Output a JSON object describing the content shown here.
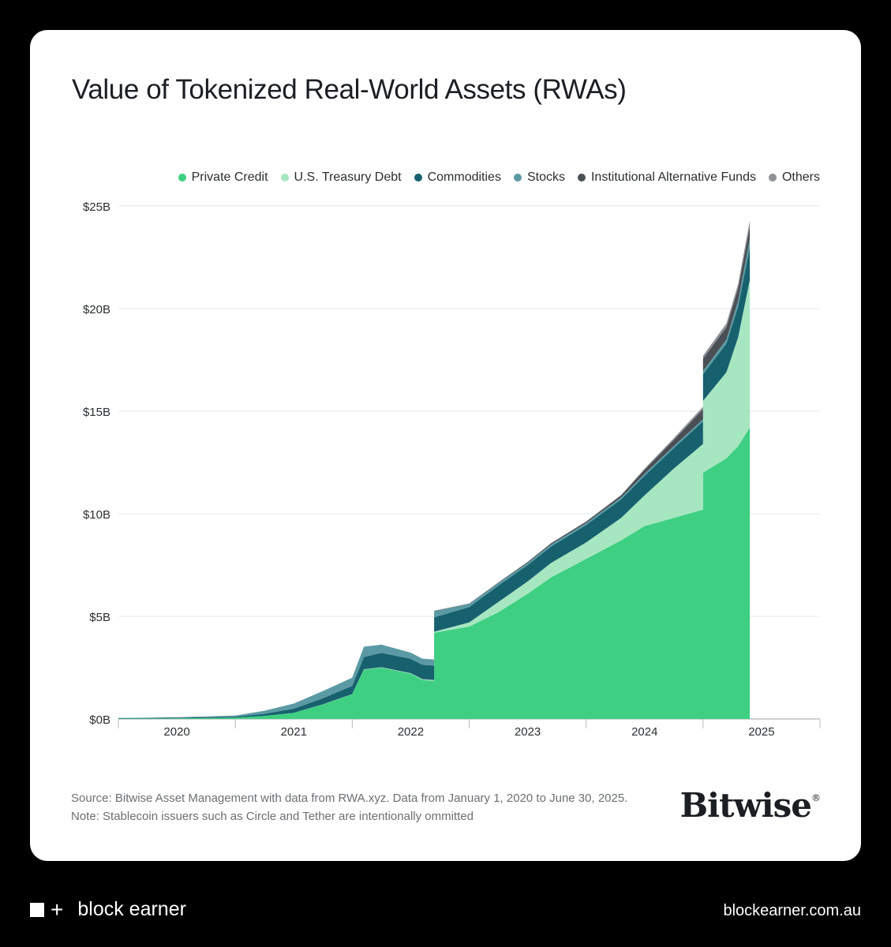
{
  "title": "Value of Tokenized Real-World Assets (RWAs)",
  "legend": [
    {
      "label": "Private Credit",
      "color": "#3ecf82"
    },
    {
      "label": "U.S. Treasury Debt",
      "color": "#a6e6c1"
    },
    {
      "label": "Commodities",
      "color": "#17616e"
    },
    {
      "label": "Stocks",
      "color": "#5b9aa4"
    },
    {
      "label": "Institutional Alternative Funds",
      "color": "#4a4f55"
    },
    {
      "label": "Others",
      "color": "#8f9296"
    }
  ],
  "source_line1": "Source: Bitwise Asset Management with data from RWA.xyz. Data from January 1, 2020 to June 30, 2025.",
  "source_line2": "Note: Stablecoin issuers such as Circle and Tether are intentionally ommitted",
  "brand": "Bitwise",
  "brand_mark": "®",
  "footer": {
    "logo_text": "block earner",
    "logo_plus": "+",
    "url": "blockearner.com.au"
  },
  "chart_data": {
    "type": "area",
    "stacked": true,
    "x_unit": "year",
    "x_ticks": [
      "2020",
      "2021",
      "2022",
      "2023",
      "2024",
      "2025"
    ],
    "y_ticks": [
      "$0B",
      "$5B",
      "$10B",
      "$15B",
      "$20B",
      "$25B"
    ],
    "ylim": [
      0,
      25
    ],
    "xlim": [
      2019.5,
      2025.5
    ],
    "grid": true,
    "legend_position": "top-right",
    "x": [
      2019.5,
      2020.0,
      2020.5,
      2020.75,
      2021.0,
      2021.25,
      2021.5,
      2021.6,
      2021.75,
      2022.0,
      2022.1,
      2022.2,
      2022.2,
      2022.5,
      2022.75,
      2023.0,
      2023.2,
      2023.5,
      2023.8,
      2024.0,
      2024.25,
      2024.5,
      2024.5,
      2024.7,
      2024.8,
      2024.9
    ],
    "series": [
      {
        "name": "Private Credit",
        "color": "#3ecf82",
        "values": [
          0.02,
          0.03,
          0.06,
          0.15,
          0.3,
          0.7,
          1.2,
          2.4,
          2.5,
          2.2,
          1.9,
          1.85,
          4.2,
          4.5,
          5.2,
          6.1,
          6.9,
          7.8,
          8.7,
          9.4,
          9.8,
          10.2,
          12.0,
          12.7,
          13.3,
          14.2
        ]
      },
      {
        "name": "U.S. Treasury Debt",
        "color": "#a6e6c1",
        "values": [
          0.0,
          0.0,
          0.0,
          0.0,
          0.0,
          0.01,
          0.01,
          0.02,
          0.02,
          0.03,
          0.04,
          0.05,
          0.05,
          0.2,
          0.5,
          0.6,
          0.7,
          0.8,
          1.1,
          1.5,
          2.4,
          3.2,
          3.5,
          4.2,
          5.3,
          7.2
        ]
      },
      {
        "name": "Commodities",
        "color": "#17616e",
        "values": [
          0.02,
          0.03,
          0.05,
          0.1,
          0.2,
          0.3,
          0.4,
          0.6,
          0.7,
          0.7,
          0.7,
          0.7,
          0.7,
          0.75,
          0.8,
          0.8,
          0.8,
          0.85,
          0.9,
          0.95,
          1.0,
          1.1,
          1.3,
          1.4,
          1.5,
          1.6
        ]
      },
      {
        "name": "Stocks",
        "color": "#5b9aa4",
        "values": [
          0.01,
          0.02,
          0.05,
          0.15,
          0.25,
          0.35,
          0.4,
          0.5,
          0.4,
          0.3,
          0.3,
          0.3,
          0.3,
          0.15,
          0.12,
          0.1,
          0.1,
          0.1,
          0.1,
          0.1,
          0.1,
          0.1,
          0.15,
          0.2,
          0.3,
          0.4
        ]
      },
      {
        "name": "Institutional Alternative Funds",
        "color": "#4a4f55",
        "values": [
          0.0,
          0.0,
          0.0,
          0.0,
          0.0,
          0.0,
          0.0,
          0.0,
          0.0,
          0.0,
          0.0,
          0.0,
          0.02,
          0.02,
          0.03,
          0.05,
          0.06,
          0.07,
          0.1,
          0.2,
          0.3,
          0.5,
          0.6,
          0.6,
          0.6,
          0.6
        ]
      },
      {
        "name": "Others",
        "color": "#8f9296",
        "values": [
          0.0,
          0.0,
          0.0,
          0.0,
          0.0,
          0.0,
          0.0,
          0.0,
          0.0,
          0.0,
          0.0,
          0.0,
          0.0,
          0.0,
          0.0,
          0.0,
          0.0,
          0.0,
          0.02,
          0.05,
          0.08,
          0.12,
          0.15,
          0.18,
          0.2,
          0.3
        ]
      }
    ]
  }
}
